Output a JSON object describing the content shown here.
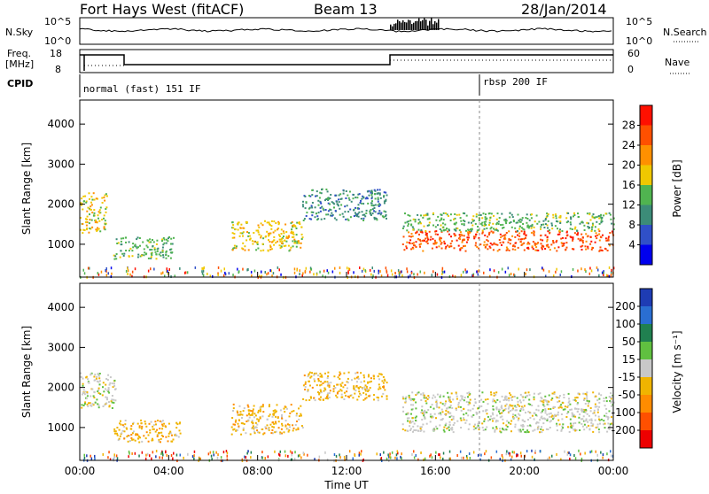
{
  "header": {
    "station": "Fort Hays West (fitACF)",
    "beam": "Beam 13",
    "date": "28/Jan/2014"
  },
  "strips": {
    "nsky_label": "N.Sky",
    "nsearch_label": "N.Search",
    "freq_label_line1": "Freq.",
    "freq_label_line2": "[MHz]",
    "nave_label": "Nave",
    "cpid_label": "CPID",
    "nsky_ticks": [
      "10^5",
      "10^0"
    ],
    "freq_ticks": [
      "18",
      "8"
    ],
    "nave_ticks": [
      "60",
      "0"
    ],
    "cpid_segments": [
      {
        "label": "normal (fast) 151 IF",
        "start_hour": 0
      },
      {
        "label": "rbsp 200 IF",
        "start_hour": 18
      }
    ]
  },
  "chart_data": [
    {
      "type": "heatmap",
      "name": "power",
      "ylabel": "Slant Range [km]",
      "xlabel": "Time UT",
      "x_ticks": [
        "00:00",
        "04:00",
        "08:00",
        "12:00",
        "16:00",
        "20:00",
        "00:00"
      ],
      "x_range_hours": [
        0,
        24
      ],
      "y_ticks": [
        1000,
        2000,
        3000,
        4000
      ],
      "y_range_km": [
        180,
        4600
      ],
      "colorbar_label": "Power [dB]",
      "colorbar_ticks": [
        4,
        8,
        12,
        16,
        20,
        24,
        28
      ],
      "colorbar_colors": [
        "#0000ee",
        "#3050c8",
        "#3c8c78",
        "#50b450",
        "#f0c800",
        "#ff9000",
        "#ff5000",
        "#ff1000"
      ],
      "regions": [
        {
          "t0": 0.0,
          "t1": 1.2,
          "r0": 1300,
          "r1": 2300,
          "color_index": 4
        },
        {
          "t0": 1.5,
          "t1": 4.2,
          "r0": 650,
          "r1": 1200,
          "color_index": 3
        },
        {
          "t0": 6.8,
          "t1": 10.0,
          "r0": 850,
          "r1": 1600,
          "color_index": 4
        },
        {
          "t0": 10.0,
          "t1": 13.8,
          "r0": 1600,
          "r1": 2400,
          "color_index": 2
        },
        {
          "t0": 14.5,
          "t1": 24.0,
          "r0": 850,
          "r1": 1350,
          "color_index": 6
        },
        {
          "t0": 14.5,
          "t1": 24.0,
          "r0": 1350,
          "r1": 1800,
          "color_index": 3
        }
      ]
    },
    {
      "type": "heatmap",
      "name": "velocity",
      "ylabel": "Slant Range [km]",
      "xlabel": "Time UT",
      "x_ticks": [
        "00:00",
        "04:00",
        "08:00",
        "12:00",
        "16:00",
        "20:00",
        "00:00"
      ],
      "x_range_hours": [
        0,
        24
      ],
      "y_ticks": [
        1000,
        2000,
        3000,
        4000
      ],
      "y_range_km": [
        180,
        4600
      ],
      "colorbar_label": "Velocity [m s⁻¹]",
      "colorbar_ticks": [
        200,
        100,
        50,
        15,
        -15,
        -50,
        -100,
        -200
      ],
      "colorbar_colors": [
        "#1e3cb4",
        "#2a6ed2",
        "#208050",
        "#60c040",
        "#c8c8c8",
        "#f0b400",
        "#ff8c00",
        "#ff5000",
        "#ee0000"
      ],
      "regions": [
        {
          "t0": 0.0,
          "t1": 1.6,
          "r0": 1500,
          "r1": 2400,
          "color_index": 4
        },
        {
          "t0": 1.5,
          "t1": 4.5,
          "r0": 650,
          "r1": 1200,
          "color_index": 5
        },
        {
          "t0": 6.8,
          "t1": 10.0,
          "r0": 850,
          "r1": 1600,
          "color_index": 5
        },
        {
          "t0": 10.0,
          "t1": 13.8,
          "r0": 1700,
          "r1": 2400,
          "color_index": 5
        },
        {
          "t0": 14.5,
          "t1": 24.0,
          "r0": 900,
          "r1": 1900,
          "color_index": 4
        }
      ]
    }
  ]
}
